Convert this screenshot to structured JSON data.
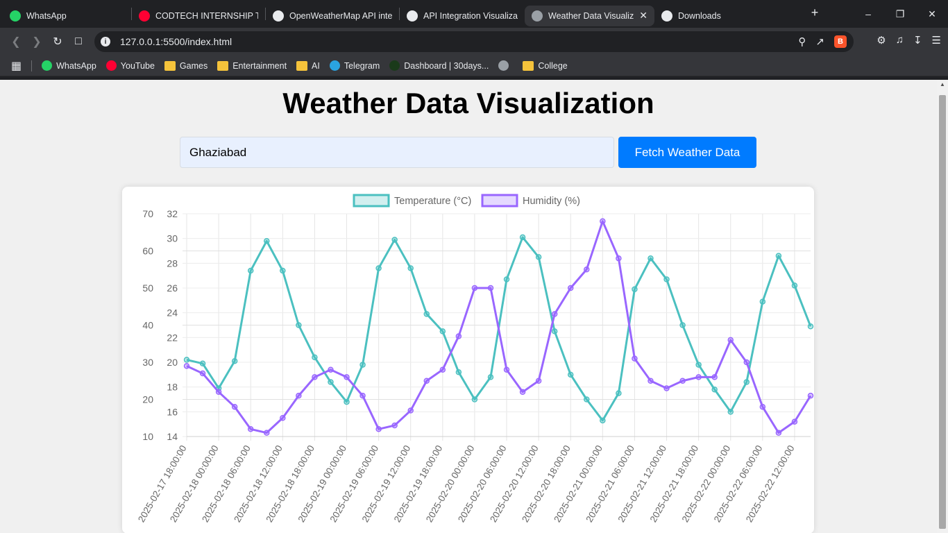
{
  "browser": {
    "tabs": [
      {
        "label": "WhatsApp",
        "icon": "whatsapp-icon",
        "color": "#25d366"
      },
      {
        "label": "CODTECH INTERNSHIP TAS",
        "icon": "youtube-icon",
        "color": "#ff0033"
      },
      {
        "label": "OpenWeatherMap API inte",
        "icon": "github-icon",
        "color": "#e8eaed"
      },
      {
        "label": "API Integration Visualizatio",
        "icon": "chatgpt-icon",
        "color": "#e8eaed"
      },
      {
        "label": "Weather Data Visualiza",
        "icon": "globe-icon",
        "color": "#9aa0a6",
        "active": true
      },
      {
        "label": "Downloads",
        "icon": "download-icon",
        "color": "#e8eaed"
      }
    ],
    "url": "127.0.0.1:5500/index.html",
    "bookmarks": [
      {
        "label": "WhatsApp",
        "icon": "whatsapp-icon"
      },
      {
        "label": "YouTube",
        "icon": "youtube-icon"
      },
      {
        "label": "Games",
        "icon": "folder-icon"
      },
      {
        "label": "Entertainment",
        "icon": "folder-icon"
      },
      {
        "label": "AI",
        "icon": "folder-icon"
      },
      {
        "label": "Telegram",
        "icon": "telegram-icon"
      },
      {
        "label": "Dashboard | 30days...",
        "icon": "30days-icon"
      },
      {
        "label": "",
        "icon": "globe-icon"
      },
      {
        "label": "College",
        "icon": "folder-icon"
      }
    ]
  },
  "page": {
    "title": "Weather Data Visualization",
    "city_value": "Ghaziabad",
    "fetch_label": "Fetch Weather Data"
  },
  "chart_data": {
    "type": "line",
    "x": [
      "2025-02-17 18:00:00",
      "2025-02-17 21:00:00",
      "2025-02-18 00:00:00",
      "2025-02-18 03:00:00",
      "2025-02-18 06:00:00",
      "2025-02-18 09:00:00",
      "2025-02-18 12:00:00",
      "2025-02-18 15:00:00",
      "2025-02-18 18:00:00",
      "2025-02-18 21:00:00",
      "2025-02-19 00:00:00",
      "2025-02-19 03:00:00",
      "2025-02-19 06:00:00",
      "2025-02-19 09:00:00",
      "2025-02-19 12:00:00",
      "2025-02-19 15:00:00",
      "2025-02-19 18:00:00",
      "2025-02-19 21:00:00",
      "2025-02-20 00:00:00",
      "2025-02-20 03:00:00",
      "2025-02-20 06:00:00",
      "2025-02-20 09:00:00",
      "2025-02-20 12:00:00",
      "2025-02-20 15:00:00",
      "2025-02-20 18:00:00",
      "2025-02-20 21:00:00",
      "2025-02-21 00:00:00",
      "2025-02-21 03:00:00",
      "2025-02-21 06:00:00",
      "2025-02-21 09:00:00",
      "2025-02-21 12:00:00",
      "2025-02-21 15:00:00",
      "2025-02-21 18:00:00",
      "2025-02-21 21:00:00",
      "2025-02-22 00:00:00",
      "2025-02-22 03:00:00",
      "2025-02-22 06:00:00",
      "2025-02-22 09:00:00",
      "2025-02-22 12:00:00",
      "2025-02-22 15:00:00"
    ],
    "xtick_labels": [
      "2025-02-17 18:00:00",
      "2025-02-18 00:00:00",
      "2025-02-18 06:00:00",
      "2025-02-18 12:00:00",
      "2025-02-18 18:00:00",
      "2025-02-19 00:00:00",
      "2025-02-19 06:00:00",
      "2025-02-19 12:00:00",
      "2025-02-19 18:00:00",
      "2025-02-20 00:00:00",
      "2025-02-20 06:00:00",
      "2025-02-20 12:00:00",
      "2025-02-20 18:00:00",
      "2025-02-21 00:00:00",
      "2025-02-21 06:00:00",
      "2025-02-21 12:00:00",
      "2025-02-21 18:00:00",
      "2025-02-22 00:00:00",
      "2025-02-22 06:00:00",
      "2025-02-22 12:00:00"
    ],
    "series": [
      {
        "name": "Temperature (°C)",
        "color": "#4bc0c0",
        "axis": "right",
        "values": [
          20.2,
          19.9,
          17.9,
          20.1,
          27.4,
          29.8,
          27.4,
          23.0,
          20.4,
          18.4,
          16.8,
          19.8,
          27.6,
          29.9,
          27.6,
          23.9,
          22.5,
          19.2,
          17.0,
          18.8,
          26.7,
          30.1,
          28.5,
          22.5,
          19.0,
          17.0,
          15.3,
          17.5,
          25.9,
          28.4,
          26.7,
          23.0,
          19.8,
          17.8,
          16.0,
          18.4,
          24.9,
          28.6,
          26.2,
          22.9
        ]
      },
      {
        "name": "Humidity (%)",
        "color": "#9966ff",
        "axis": "left",
        "values": [
          29,
          27,
          22,
          18,
          12,
          11,
          15,
          21,
          26,
          28,
          26,
          21,
          12,
          13,
          17,
          25,
          28,
          37,
          50,
          50,
          28,
          22,
          25,
          43,
          50,
          55,
          68,
          58,
          31,
          25,
          23,
          25,
          26,
          26,
          36,
          30,
          18,
          11,
          14,
          21
        ]
      }
    ],
    "y_left": {
      "lim": [
        10,
        70
      ],
      "ticks": [
        10,
        20,
        30,
        40,
        50,
        60,
        70
      ]
    },
    "y_right": {
      "lim": [
        14,
        32
      ],
      "ticks": [
        14,
        16,
        18,
        20,
        22,
        24,
        26,
        28,
        30,
        32
      ]
    },
    "legend_position": "top",
    "grid": true
  }
}
